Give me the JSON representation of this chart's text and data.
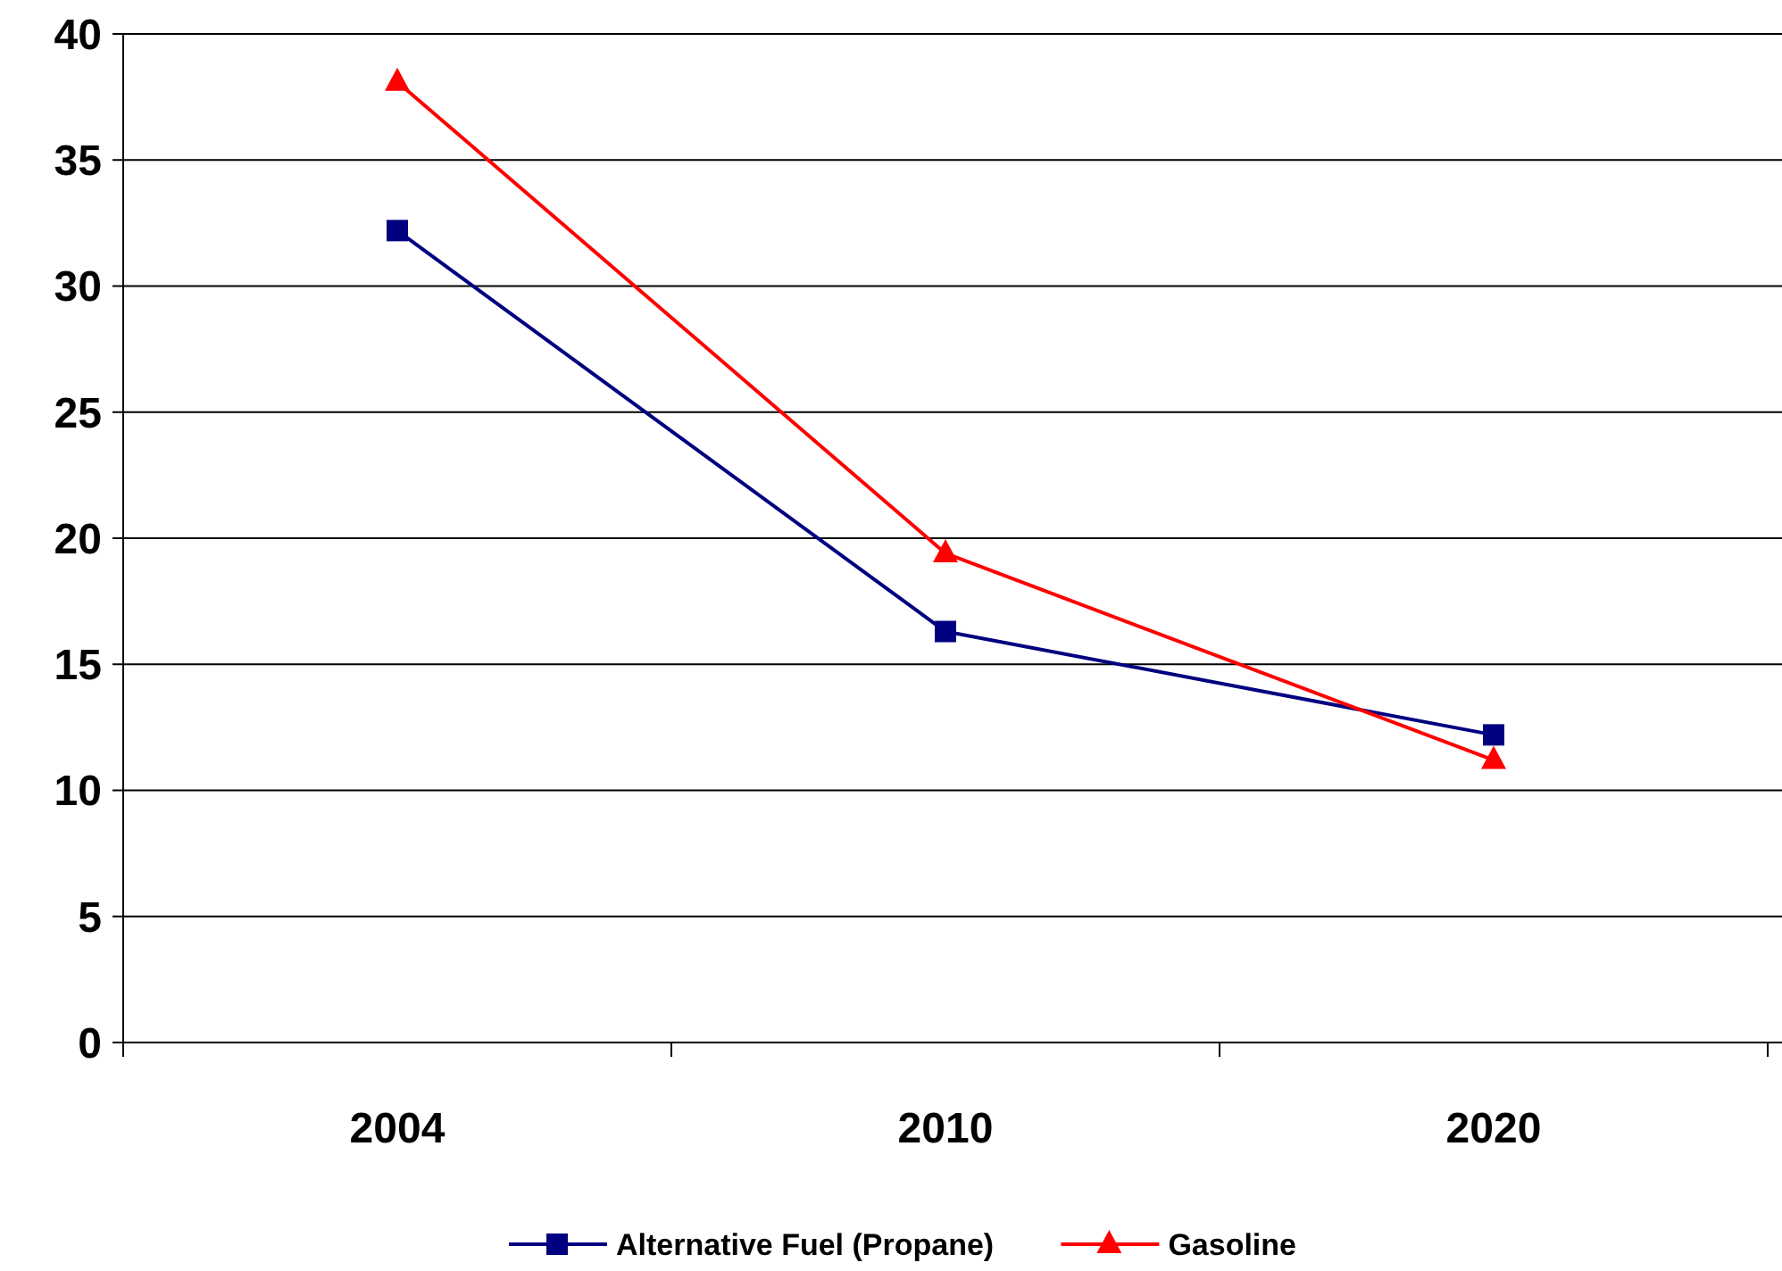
{
  "chart_data": {
    "type": "line",
    "categories": [
      "2004",
      "2010",
      "2020"
    ],
    "series": [
      {
        "name": "Alternative Fuel (Propane)",
        "color": "#000080",
        "marker": "square",
        "values": [
          32.2,
          16.3,
          12.2
        ]
      },
      {
        "name": "Gasoline",
        "color": "#ff0000",
        "marker": "triangle",
        "values": [
          38.1,
          19.4,
          11.2
        ]
      }
    ],
    "ylim": [
      0,
      40
    ],
    "yticks": [
      0,
      5,
      10,
      15,
      20,
      25,
      30,
      35,
      40
    ],
    "grid": "y",
    "legend": "bottom",
    "line_style": "solid"
  }
}
